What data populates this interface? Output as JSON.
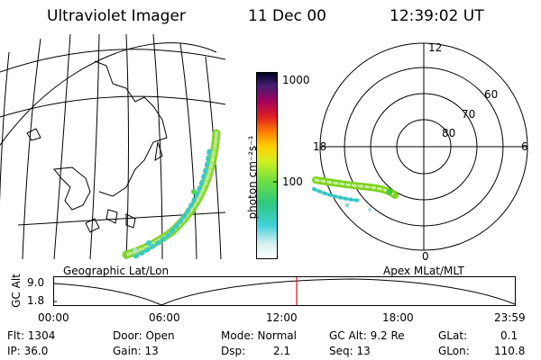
{
  "header": {
    "instrument": "Ultraviolet Imager",
    "date": "11 Dec 00",
    "time": "12:39:02 UT"
  },
  "colorbar": {
    "unit_label": "photon cm⁻²s⁻¹",
    "ticks": [
      "1000",
      "100"
    ]
  },
  "polar_plot": {
    "mlt_labels": {
      "top": "12",
      "right": "6",
      "bottom": "0",
      "left": "18"
    },
    "lat_labels": [
      "60",
      "70",
      "80"
    ]
  },
  "labels": {
    "left_panel": "Geographic Lat/Lon",
    "right_panel": "Apex MLat/MLT"
  },
  "timeline": {
    "ylabel": "GC Alt",
    "yticks": [
      "9.0",
      "1.8"
    ],
    "xticks": [
      "00:00",
      "06:00",
      "12:00",
      "18:00",
      "23:59"
    ],
    "current_marker_time": "12:39"
  },
  "info": {
    "flt": "Flt: 1304",
    "ip": "IP: 36.0",
    "door": "Door: Open",
    "gain": "Gain: 13",
    "mode": "Mode: Normal",
    "dsp_label": "Dsp:",
    "dsp_value": "2.1",
    "gc_alt": "GC Alt: 9.2 Re",
    "seq": "Seq: 13",
    "glat_label": "GLat:",
    "glat_value": "0.1",
    "glon_label": "GLon:",
    "glon_value": "110.8"
  }
}
